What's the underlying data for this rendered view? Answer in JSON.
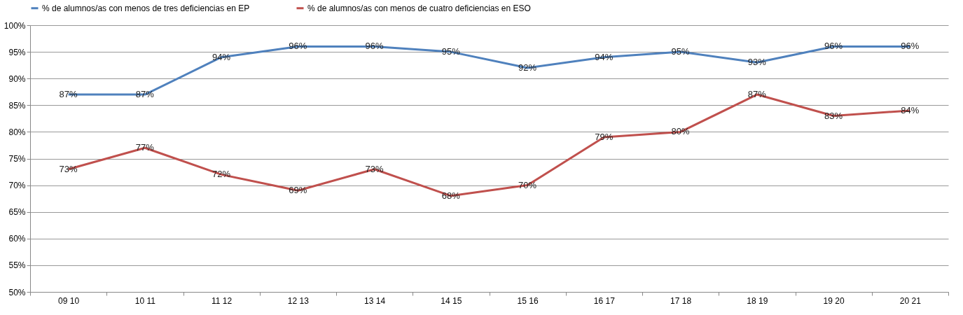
{
  "chart_data": {
    "type": "line",
    "categories": [
      "09 10",
      "10 11",
      "11 12",
      "12 13",
      "13 14",
      "14 15",
      "15 16",
      "16 17",
      "17 18",
      "18 19",
      "19 20",
      "20 21"
    ],
    "series": [
      {
        "name": "% de alumnos/as con menos de tres deficiencias en EP",
        "color": "#4f81bd",
        "values": [
          87,
          87,
          94,
          96,
          96,
          95,
          92,
          94,
          95,
          93,
          96,
          96
        ],
        "value_labels": [
          "87%",
          "87%",
          "94%",
          "96%",
          "96%",
          "95%",
          "92%",
          "94%",
          "95%",
          "93%",
          "96%",
          "96%"
        ]
      },
      {
        "name": "% de alumnos/as con menos de cuatro deficiencias en ESO",
        "color": "#c0504d",
        "values": [
          73,
          77,
          72,
          69,
          73,
          68,
          70,
          79,
          80,
          87,
          83,
          84
        ],
        "value_labels": [
          "73%",
          "77%",
          "72%",
          "69%",
          "73%",
          "68%",
          "70%",
          "79%",
          "80%",
          "87%",
          "83%",
          "84%"
        ]
      }
    ],
    "ylim": [
      50,
      100
    ],
    "yticks": [
      {
        "value": 50,
        "label": "50%"
      },
      {
        "value": 55,
        "label": "55%"
      },
      {
        "value": 60,
        "label": "60%"
      },
      {
        "value": 65,
        "label": "65%"
      },
      {
        "value": 70,
        "label": "70%"
      },
      {
        "value": 75,
        "label": "75%"
      },
      {
        "value": 80,
        "label": "80%"
      },
      {
        "value": 85,
        "label": "85%"
      },
      {
        "value": 90,
        "label": "90%"
      },
      {
        "value": 95,
        "label": "95%"
      },
      {
        "value": 100,
        "label": "100%"
      }
    ],
    "grid": "y",
    "legend": "top"
  }
}
